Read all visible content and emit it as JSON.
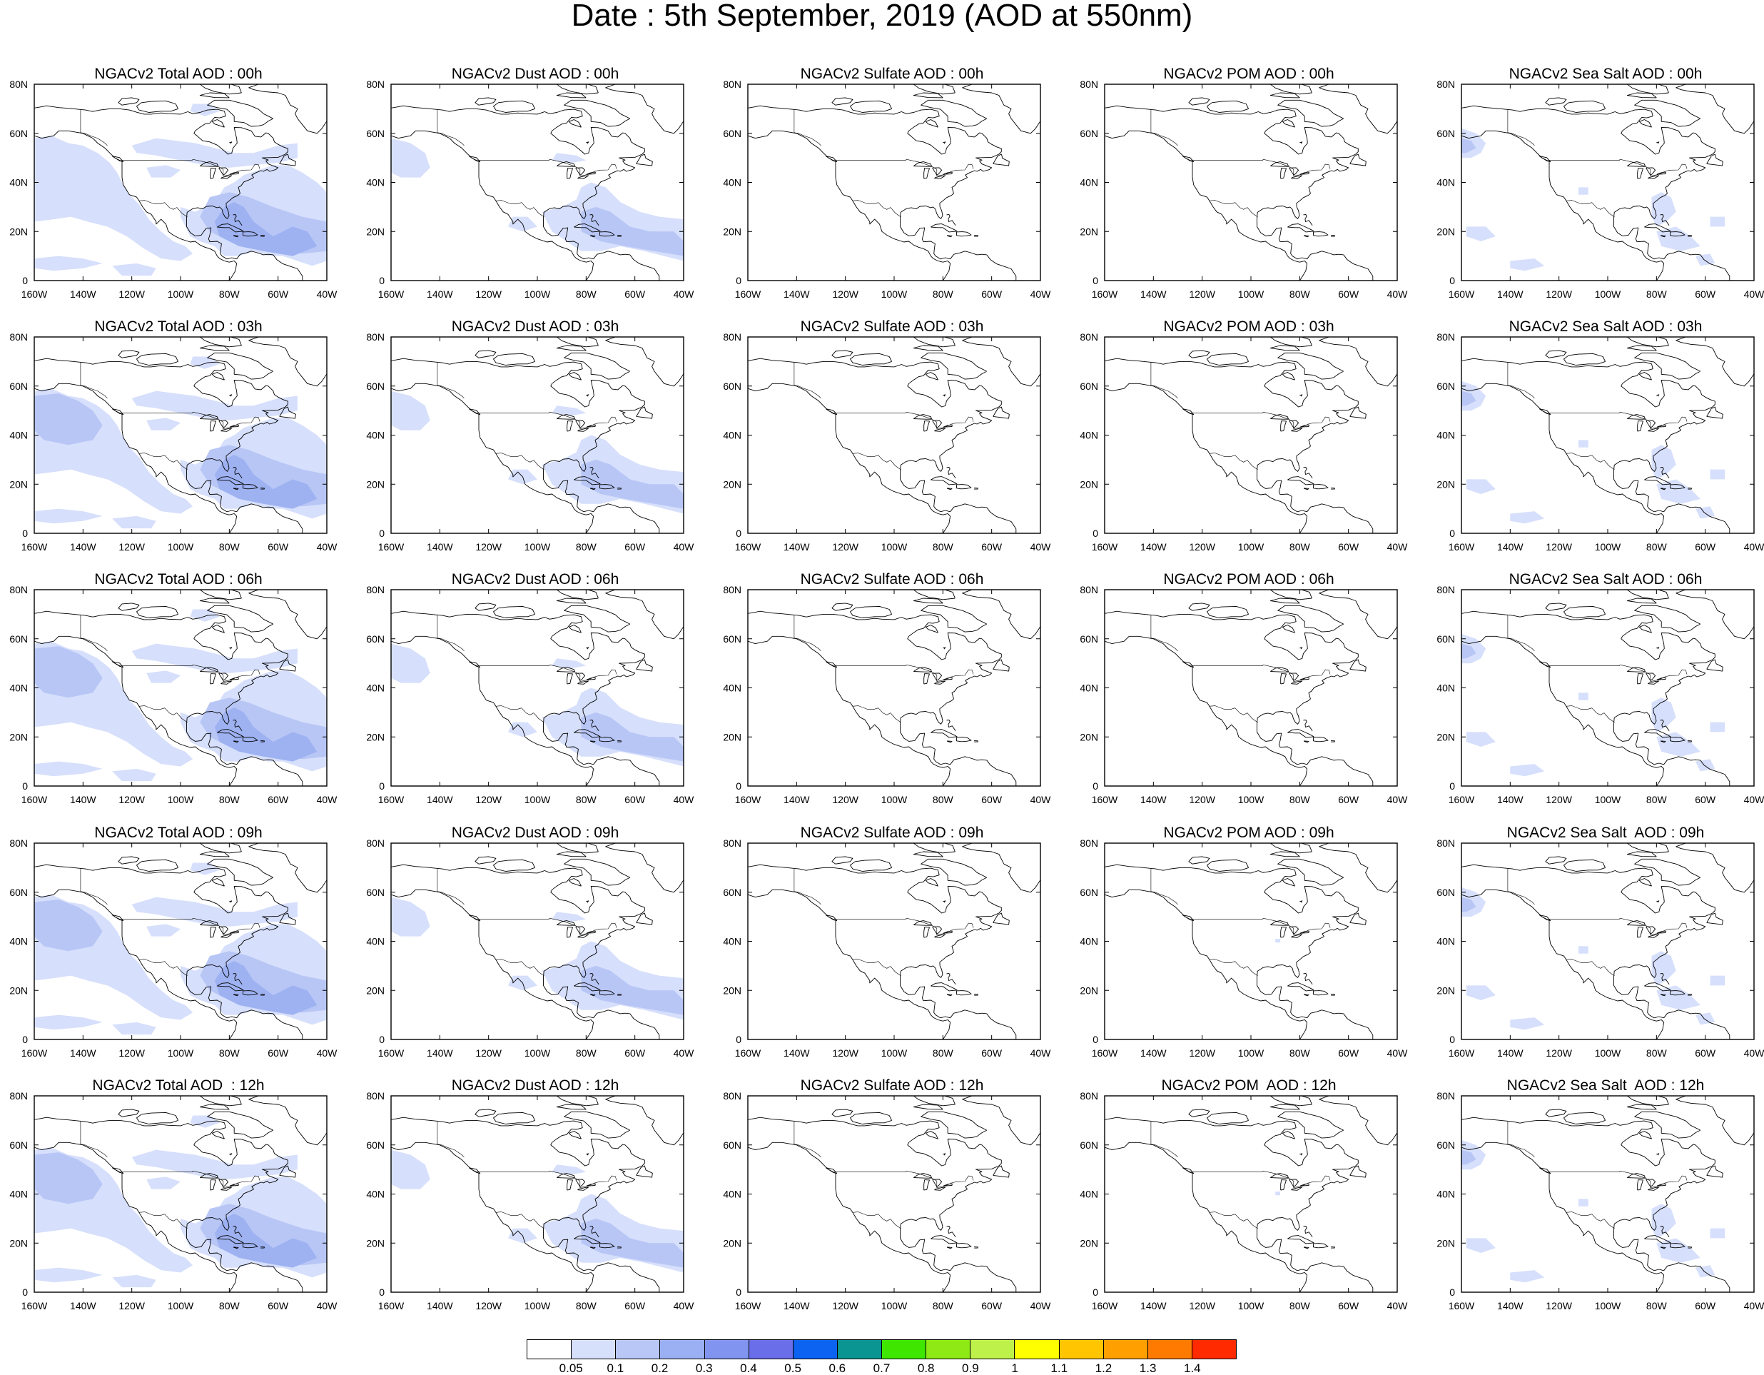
{
  "title": "Date : 5th September, 2019 (AOD at 550nm)",
  "panels": [
    [
      "NGACv2 Total AOD : 00h",
      "NGACv2 Dust AOD : 00h",
      "NGACv2 Sulfate AOD : 00h",
      "NGACv2 POM AOD : 00h",
      "NGACv2 Sea Salt AOD : 00h"
    ],
    [
      "NGACv2 Total AOD : 03h",
      "NGACv2 Dust AOD : 03h",
      "NGACv2 Sulfate AOD : 03h",
      "NGACv2 POM AOD : 03h",
      "NGACv2 Sea Salt AOD : 03h"
    ],
    [
      "NGACv2 Total AOD : 06h",
      "NGACv2 Dust AOD : 06h",
      "NGACv2 Sulfate AOD : 06h",
      "NGACv2 POM AOD : 06h",
      "NGACv2 Sea Salt AOD : 06h"
    ],
    [
      "NGACv2 Total AOD : 09h",
      "NGACv2 Dust AOD : 09h",
      "NGACv2 Sulfate AOD : 09h",
      "NGACv2 POM AOD : 09h",
      "NGACv2 Sea Salt  AOD : 09h"
    ],
    [
      "NGACv2 Total AOD  : 12h",
      "NGACv2 Dust AOD : 12h",
      "NGACv2 Sulfate AOD : 12h",
      "NGACv2 POM  AOD : 12h",
      "NGACv2 Sea Salt  AOD : 12h"
    ]
  ],
  "map": {
    "lon_range": [
      -160,
      -40
    ],
    "lat_range": [
      0,
      80
    ],
    "x_ticks": [
      "160W",
      "140W",
      "120W",
      "100W",
      "80W",
      "60W",
      "40W"
    ],
    "y_ticks": [
      "0",
      "20N",
      "40N",
      "60N",
      "80N"
    ]
  },
  "colorbar": {
    "colors": [
      "#ffffff",
      "#d7e0fb",
      "#b9c7f7",
      "#9bb0f3",
      "#8195f0",
      "#6a6fe9",
      "#0c62f1",
      "#0a9492",
      "#3fe700",
      "#8ee915",
      "#bef24b",
      "#ffff00",
      "#ffc500",
      "#ffa000",
      "#ff7a00",
      "#ff2a00"
    ],
    "labels": [
      "0.05",
      "0.1",
      "0.2",
      "0.3",
      "0.4",
      "0.5",
      "0.6",
      "0.7",
      "0.8",
      "0.9",
      "1",
      "1.1",
      "1.2",
      "1.3",
      "1.4"
    ]
  },
  "field_colors": {
    "light": "#d6dffb",
    "medium": "#b8c6f6",
    "strong": "#9eb2f2",
    "coast": "#000000"
  }
}
